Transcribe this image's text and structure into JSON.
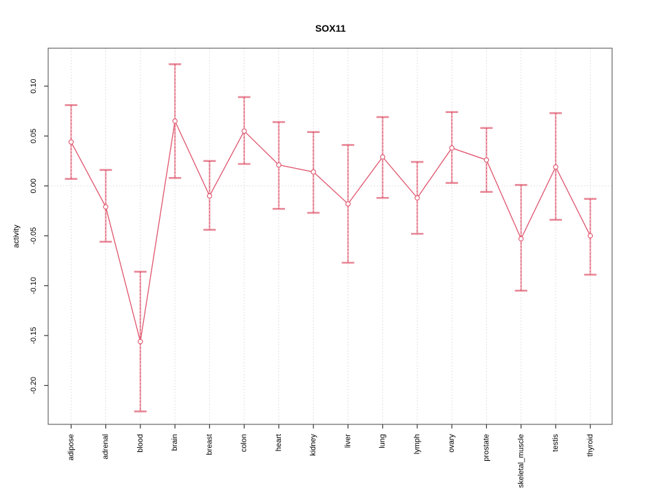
{
  "chart_data": {
    "type": "line",
    "title": "SOX11",
    "xlabel": "",
    "ylabel": "activity",
    "categories": [
      "adipose",
      "adrenal",
      "blood",
      "brain",
      "breast",
      "colon",
      "heart",
      "kidney",
      "liver",
      "lung",
      "lymph",
      "ovary",
      "prostate",
      "skeletal_muscle",
      "testis",
      "thyroid"
    ],
    "series": [
      {
        "name": "activity",
        "values": [
          0.044,
          -0.021,
          -0.156,
          0.065,
          -0.01,
          0.055,
          0.021,
          0.014,
          -0.018,
          0.029,
          -0.012,
          0.038,
          0.026,
          -0.053,
          0.019,
          -0.05
        ],
        "error_low": [
          0.007,
          -0.056,
          -0.226,
          0.008,
          -0.044,
          0.022,
          -0.023,
          -0.027,
          -0.077,
          -0.012,
          -0.048,
          0.003,
          -0.006,
          -0.105,
          -0.034,
          -0.089
        ],
        "error_high": [
          0.081,
          0.016,
          -0.086,
          0.122,
          0.025,
          0.089,
          0.064,
          0.054,
          0.041,
          0.069,
          0.024,
          0.074,
          0.058,
          0.001,
          0.073,
          -0.013
        ]
      }
    ],
    "ylim": [
      -0.239,
      0.138
    ],
    "yticks": [
      0.1,
      0.05,
      0.0,
      -0.05,
      -0.1,
      -0.15,
      -0.2
    ],
    "ytick_labels": [
      "0.10",
      "0.05",
      "0.00",
      "-0.05",
      "-0.10",
      "-0.15",
      "-0.20"
    ],
    "grid": "dotted vertical line at each category; dotted horizontal line at y=0",
    "legend": "none",
    "marker": "open-circle",
    "colors": {
      "series": "#df536b",
      "grid": "#d6d6d6",
      "axis_box": "#666666",
      "tick": "#333333",
      "text": "#000000",
      "background": "#ffffff"
    }
  }
}
